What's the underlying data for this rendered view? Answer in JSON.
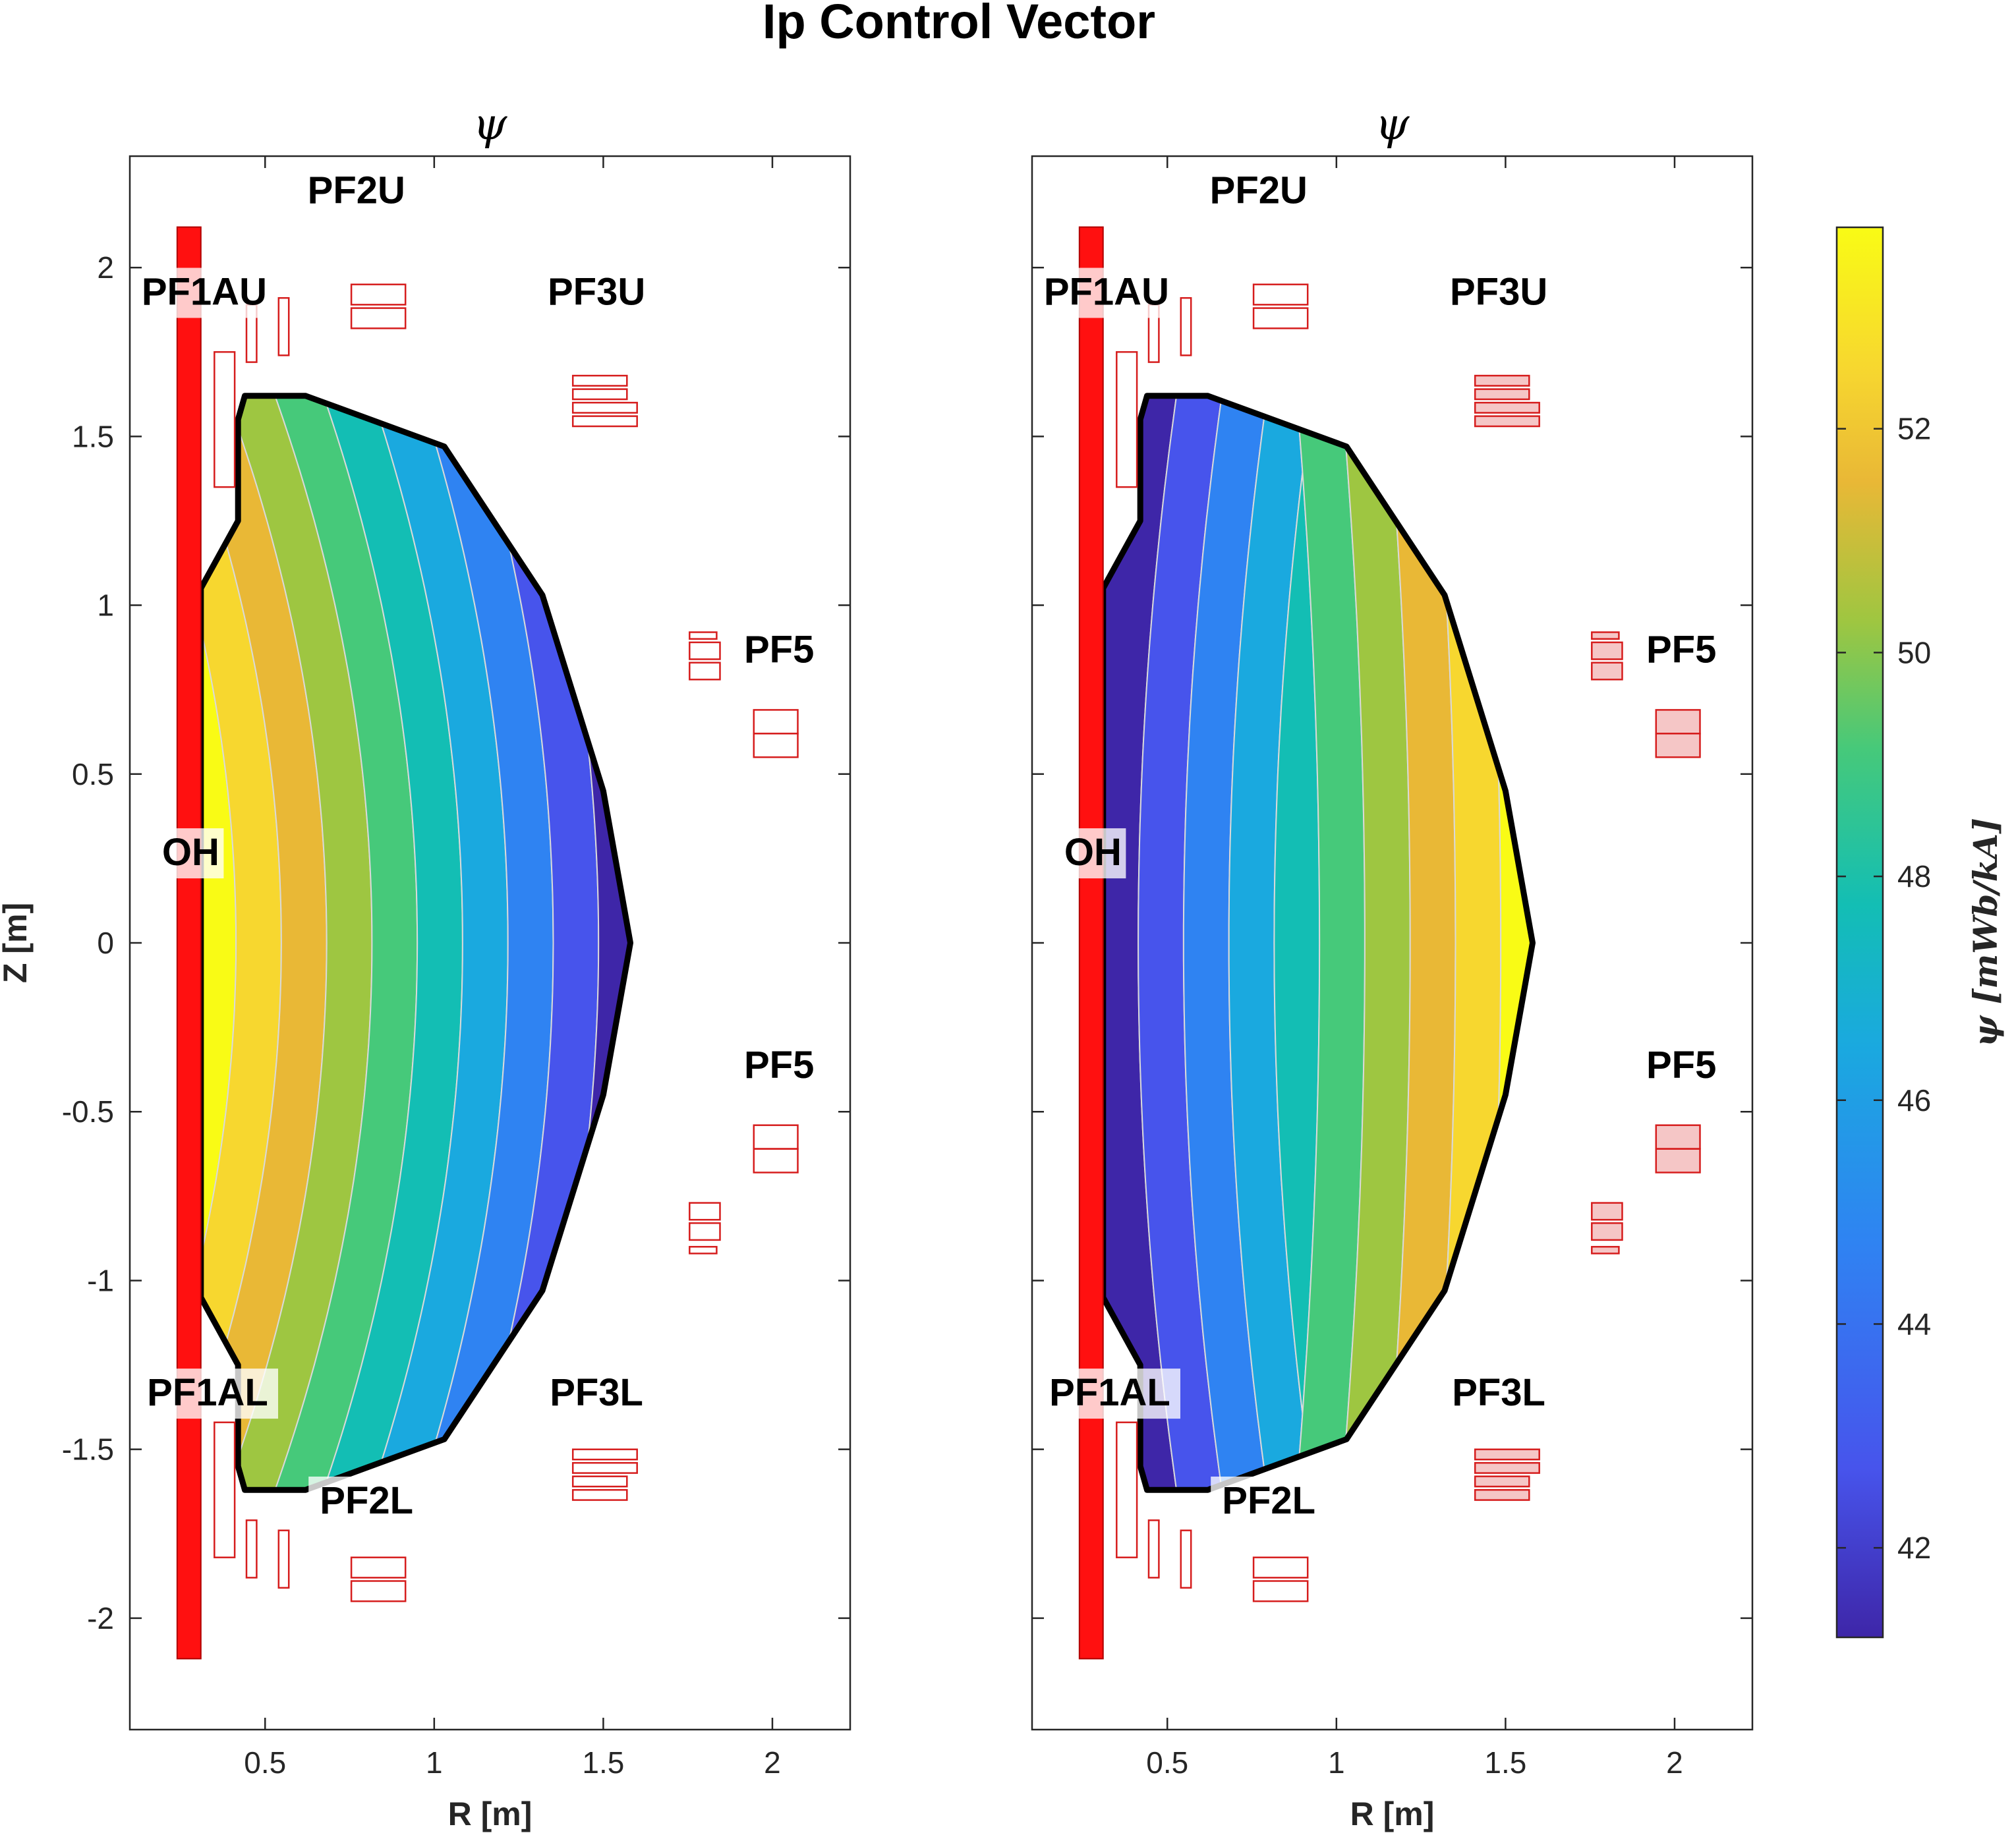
{
  "figure": {
    "title": "Ip Control Vector"
  },
  "chart_data": [
    {
      "type": "contour",
      "title": "ψ",
      "xlabel": "R [m]",
      "ylabel": "Z [m]",
      "xlim": [
        0.1,
        2.23
      ],
      "ylim": [
        -2.33,
        2.33
      ],
      "xticks": [
        0.5,
        1,
        1.5,
        2
      ],
      "xtick_labels": [
        "0.5",
        "1",
        "1.5",
        "2"
      ],
      "yticks": [
        2,
        1.5,
        1,
        0.5,
        0,
        -0.5,
        -1,
        -1.5,
        -2
      ],
      "ytick_labels": [
        "2",
        "1.5",
        "1",
        "0.5",
        "0",
        "-0.5",
        "-1",
        "-1.5",
        "-2"
      ],
      "psi_trend": "decreasing with R",
      "psi_range": [
        41.2,
        53.8
      ],
      "coil_labels": [
        "PF2U",
        "PF1AU",
        "PF3U",
        "PF5",
        "OH",
        "PF5",
        "PF1AL",
        "PF3L",
        "PF2L"
      ]
    },
    {
      "type": "contour",
      "title": "ψ",
      "xlabel": "R [m]",
      "ylabel": "",
      "xlim": [
        0.1,
        2.23
      ],
      "ylim": [
        -2.33,
        2.33
      ],
      "xticks": [
        0.5,
        1,
        1.5,
        2
      ],
      "xtick_labels": [
        "0.5",
        "1",
        "1.5",
        "2"
      ],
      "psi_trend": "increasing with R",
      "psi_range": [
        41.2,
        53.8
      ],
      "coil_labels": [
        "PF2U",
        "PF1AU",
        "PF3U",
        "PF5",
        "OH",
        "PF5",
        "PF1AL",
        "PF3L",
        "PF2L"
      ]
    }
  ],
  "colorbar": {
    "label": "ψ [mWb/kA]",
    "range": [
      41.2,
      53.8
    ],
    "ticks": [
      42,
      44,
      46,
      48,
      50,
      52
    ],
    "tick_labels": [
      "42",
      "44",
      "46",
      "48",
      "50",
      "52"
    ],
    "colors": [
      "#3e26a8",
      "#4754ec",
      "#2f83f2",
      "#1aa9df",
      "#13beb4",
      "#46c97a",
      "#9ec641",
      "#e9b836",
      "#f7d72f",
      "#f9fb15"
    ]
  },
  "colors": {
    "coil": "#d61d1d",
    "oh_coil": "#ff1010",
    "boundary": "#000000",
    "contour_line": "#d9d9d9"
  }
}
